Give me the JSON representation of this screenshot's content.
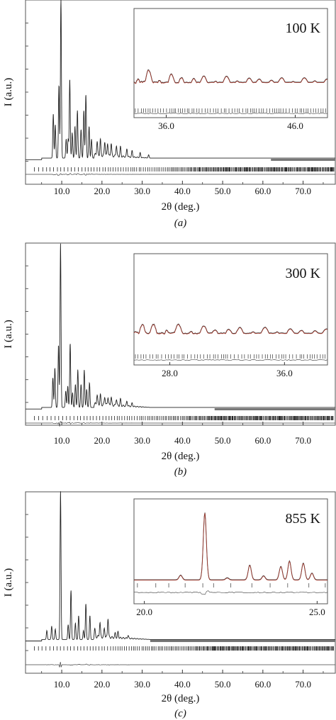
{
  "chart_data": [
    {
      "type": "line",
      "panel_label": "(a)",
      "temperature": "100 K",
      "xlabel": "2θ (deg.)",
      "ylabel": "I (a.u.)",
      "xlim": [
        1.0,
        78.0
      ],
      "xticks": [
        "10.0",
        "20.0",
        "30.0",
        "40.0",
        "50.0",
        "60.0",
        "70.0"
      ],
      "peaks": [
        [
          7.9,
          0.28
        ],
        [
          8.4,
          0.21
        ],
        [
          9.3,
          0.46
        ],
        [
          9.8,
          1.0
        ],
        [
          11.1,
          0.12
        ],
        [
          11.6,
          0.12
        ],
        [
          12.0,
          0.5
        ],
        [
          12.6,
          0.16
        ],
        [
          13.3,
          0.2
        ],
        [
          13.9,
          0.3
        ],
        [
          14.8,
          0.18
        ],
        [
          15.5,
          0.3
        ],
        [
          16.0,
          0.4
        ],
        [
          16.8,
          0.2
        ],
        [
          17.4,
          0.12
        ],
        [
          18.8,
          0.09
        ],
        [
          19.6,
          0.1
        ],
        [
          20.7,
          0.09
        ],
        [
          21.4,
          0.08
        ],
        [
          22.3,
          0.08
        ],
        [
          23.6,
          0.07
        ],
        [
          24.6,
          0.06
        ],
        [
          26.2,
          0.05
        ],
        [
          27.5,
          0.04
        ],
        [
          29.5,
          0.03
        ],
        [
          31.6,
          0.02
        ]
      ],
      "inset": {
        "xlim": [
          33.5,
          48.5
        ],
        "xticks": [
          "36.0",
          "46.0"
        ]
      }
    },
    {
      "type": "line",
      "panel_label": "(b)",
      "temperature": "300 K",
      "xlabel": "2θ (deg.)",
      "ylabel": "I (a.u.)",
      "xlim": [
        1.0,
        78.0
      ],
      "xticks": [
        "10.0",
        "20.0",
        "30.0",
        "40.0",
        "50.0",
        "60.0",
        "70.0"
      ],
      "peaks": [
        [
          7.8,
          0.18
        ],
        [
          8.3,
          0.24
        ],
        [
          9.2,
          0.38
        ],
        [
          9.7,
          1.0
        ],
        [
          11.0,
          0.1
        ],
        [
          11.5,
          0.13
        ],
        [
          12.1,
          0.39
        ],
        [
          12.7,
          0.09
        ],
        [
          13.4,
          0.14
        ],
        [
          14.0,
          0.23
        ],
        [
          14.8,
          0.14
        ],
        [
          15.6,
          0.23
        ],
        [
          16.2,
          0.11
        ],
        [
          16.9,
          0.15
        ],
        [
          18.8,
          0.06
        ],
        [
          19.6,
          0.06
        ],
        [
          20.7,
          0.05
        ],
        [
          21.5,
          0.05
        ],
        [
          22.3,
          0.05
        ],
        [
          23.6,
          0.04
        ],
        [
          24.6,
          0.04
        ],
        [
          26.2,
          0.03
        ],
        [
          27.5,
          0.02
        ]
      ],
      "inset": {
        "xlim": [
          25.5,
          39.0
        ],
        "xticks": [
          "28.0",
          "36.0"
        ]
      }
    },
    {
      "type": "line",
      "panel_label": "(c)",
      "temperature": "855 K",
      "xlabel": "2θ (deg.)",
      "ylabel": "I (a.u.)",
      "xlim": [
        1.0,
        78.0
      ],
      "xticks": [
        "10.0",
        "20.0",
        "30.0",
        "40.0",
        "50.0",
        "60.0",
        "70.0"
      ],
      "peaks": [
        [
          6.3,
          0.06
        ],
        [
          7.5,
          0.09
        ],
        [
          8.4,
          0.07
        ],
        [
          9.7,
          1.0
        ],
        [
          11.6,
          0.1
        ],
        [
          12.3,
          0.33
        ],
        [
          13.4,
          0.11
        ],
        [
          14.2,
          0.16
        ],
        [
          15.4,
          0.06
        ],
        [
          16.0,
          0.24
        ],
        [
          17.0,
          0.16
        ],
        [
          18.2,
          0.05
        ],
        [
          19.5,
          0.1
        ],
        [
          20.6,
          0.06
        ],
        [
          21.5,
          0.13
        ],
        [
          23.3,
          0.03
        ],
        [
          24.0,
          0.04
        ],
        [
          26.5,
          0.02
        ]
      ],
      "inset": {
        "xlim": [
          19.7,
          25.3
        ],
        "xticks": [
          "20.0",
          "25.0"
        ]
      }
    }
  ]
}
